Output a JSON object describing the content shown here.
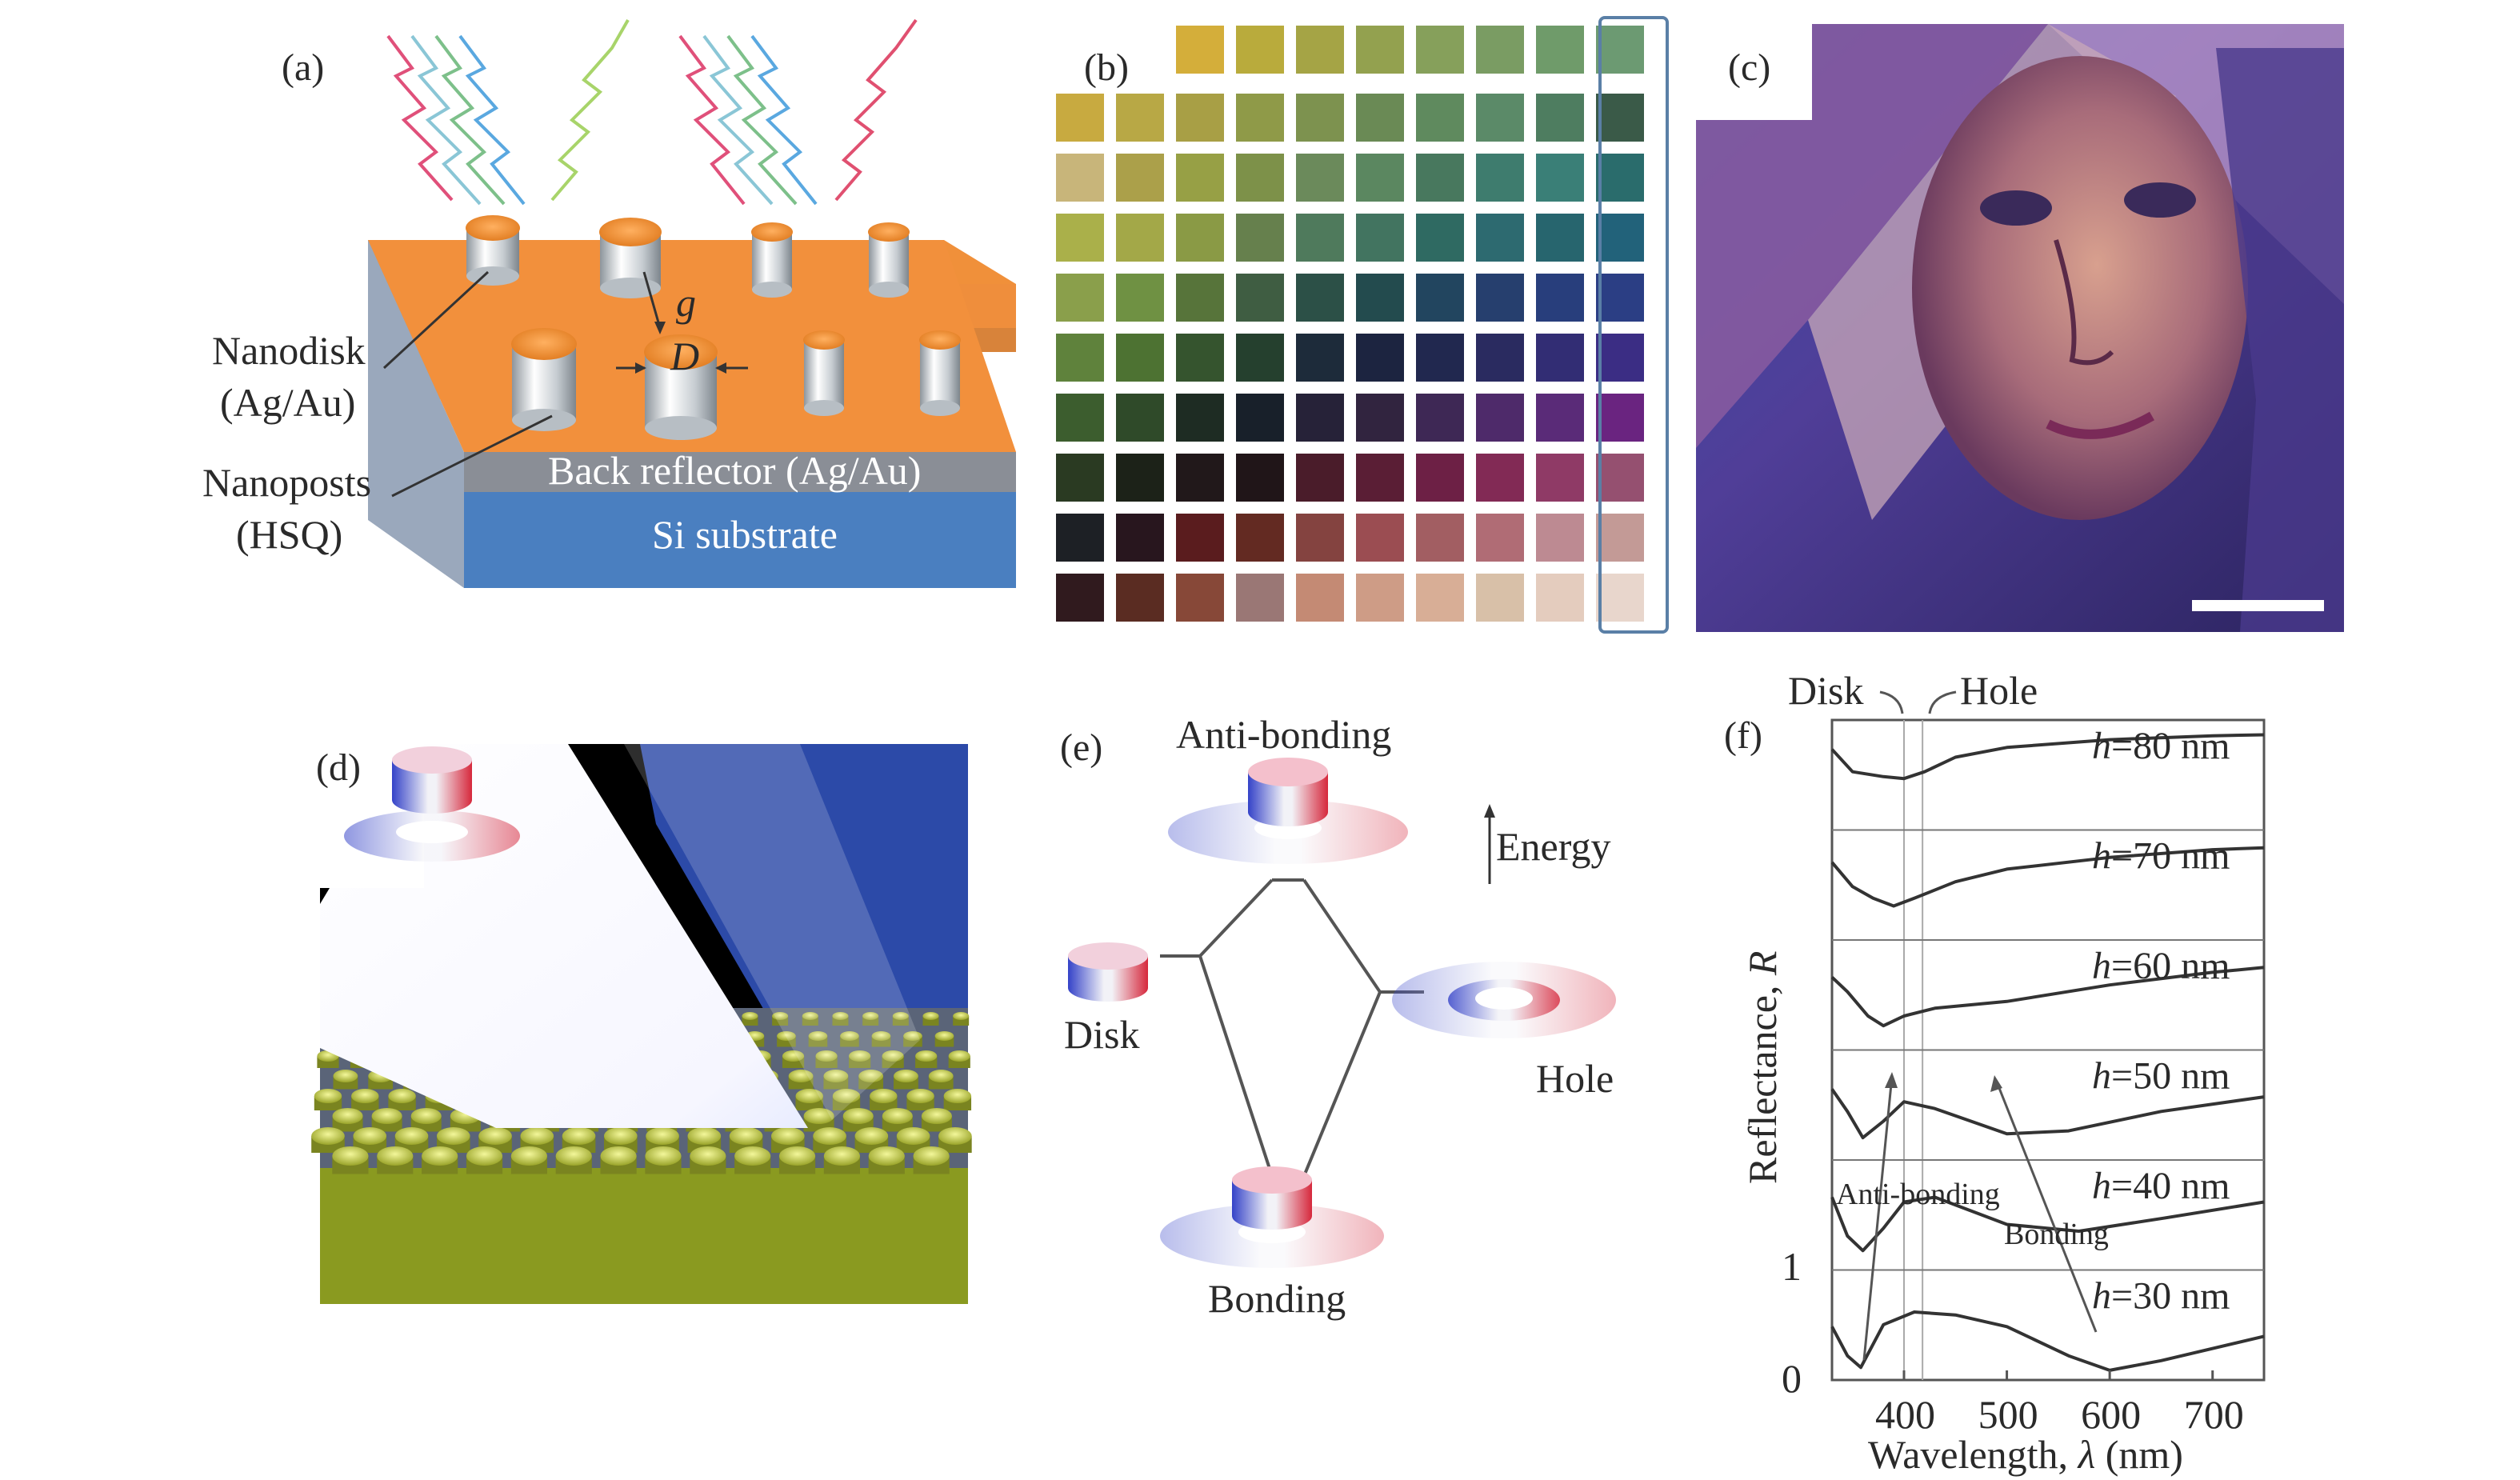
{
  "panels": {
    "a": {
      "label": "(a)",
      "nanodisk": "Nanodisk",
      "nanodisk_material": "(Ag/Au)",
      "nanoposts": "Nanoposts",
      "nanoposts_material": "(HSQ)",
      "back_reflector": "Back reflector (Ag/Au)",
      "substrate": "Si substrate",
      "gap_symbol": "g",
      "diameter_symbol": "D"
    },
    "b": {
      "label": "(b)",
      "rows": [
        [
          "",
          "",
          "#d4ae3a",
          "#b9ab3c",
          "#a5a445",
          "#93a14f",
          "#86a05b",
          "#7a9c63",
          "#6f9b6a",
          "#6c9a72"
        ],
        [
          "#c8aa40",
          "#b8a845",
          "#a89f45",
          "#8f9a48",
          "#7d924f",
          "#6a8a55",
          "#5f8a5e",
          "#5b8a68",
          "#4e7d60",
          "#3a5a48"
        ],
        [
          "#c8b57a",
          "#aba04a",
          "#97a045",
          "#7d9149",
          "#6b8a5b",
          "#5b8760",
          "#48785e",
          "#3e7c6e",
          "#3a7f77",
          "#2a6c6c"
        ],
        [
          "#aab04a",
          "#a3a848",
          "#8a9a45",
          "#66804d",
          "#4f7a5c",
          "#427460",
          "#2f6a62",
          "#2d6a70",
          "#27656e",
          "#22627a"
        ],
        [
          "#8a9f4b",
          "#6f9143",
          "#57743a",
          "#3f5d42",
          "#2c5047",
          "#234b4e",
          "#22455f",
          "#263f6e",
          "#283e7c",
          "#2b3e84"
        ],
        [
          "#5f823c",
          "#4d7232",
          "#35542e",
          "#25402e",
          "#1d2b3a",
          "#1c2440",
          "#21284f",
          "#2a2b60",
          "#322d74",
          "#3b2d84"
        ],
        [
          "#3c5d2e",
          "#2f4a29",
          "#1e2c23",
          "#18202a",
          "#262238",
          "#31243f",
          "#3e2855",
          "#4e2a6a",
          "#5a2b78",
          "#6a2480"
        ],
        [
          "#2a3a22",
          "#1c2218",
          "#21181a",
          "#201518",
          "#4a1c2a",
          "#5a1e35",
          "#6d2045",
          "#822a55",
          "#8f3a66",
          "#955070"
        ],
        [
          "#1d2025",
          "#28161e",
          "#5a1c1e",
          "#632a22",
          "#844340",
          "#9b4d52",
          "#a25e62",
          "#b06c75",
          "#bd8a92",
          "#c39a96"
        ],
        [
          "#301a1e",
          "#5a2c22",
          "#874838",
          "#9a7775",
          "#c48a74",
          "#ce9c86",
          "#d8ae96",
          "#d8c0a8",
          "#e4ccbe",
          "#e8d6cc"
        ]
      ]
    },
    "c": {
      "label": "(c)",
      "image_description": "portrait photograph rendered in structural colors with scale bar"
    },
    "d": {
      "label": "(d)"
    },
    "e": {
      "label": "(e)",
      "anti_bonding": "Anti-bonding",
      "bonding": "Bonding",
      "disk": "Disk",
      "hole": "Hole",
      "energy": "Energy"
    },
    "f": {
      "label": "(f)",
      "disk_label": "Disk",
      "hole_label": "Hole",
      "anti_bonding_label": "Anti-bonding",
      "bonding_label": "Bonding",
      "ylabel_text": "Reflectance, ",
      "ylabel_symbol": "R",
      "xlabel_text": "Wavelength, ",
      "xlabel_symbol": "λ",
      "xlabel_unit": " (nm)",
      "y_tick_0": "0",
      "y_tick_1": "1",
      "h_symbol": "h",
      "x_ticks": [
        "400",
        "500",
        "600",
        "700"
      ]
    }
  },
  "chart_data": {
    "type": "line",
    "xlabel": "Wavelength, λ (nm)",
    "ylabel": "Reflectance, R",
    "xlim": [
      330,
      750
    ],
    "ylim_per_panel": [
      0,
      1
    ],
    "markers": {
      "Disk": 400,
      "Hole": 418
    },
    "series": [
      {
        "name": "h=80 nm",
        "x": [
          330,
          350,
          380,
          400,
          420,
          450,
          500,
          600,
          700,
          750
        ],
        "y": [
          0.78,
          0.55,
          0.5,
          0.48,
          0.55,
          0.7,
          0.8,
          0.88,
          0.92,
          0.93
        ]
      },
      {
        "name": "h=70 nm",
        "x": [
          330,
          350,
          370,
          390,
          410,
          450,
          500,
          600,
          700,
          750
        ],
        "y": [
          0.75,
          0.5,
          0.38,
          0.3,
          0.38,
          0.55,
          0.68,
          0.8,
          0.88,
          0.9
        ]
      },
      {
        "name": "h=60 nm",
        "x": [
          330,
          345,
          365,
          380,
          400,
          430,
          500,
          600,
          700,
          750
        ],
        "y": [
          0.7,
          0.55,
          0.3,
          0.2,
          0.3,
          0.38,
          0.45,
          0.62,
          0.75,
          0.8
        ]
      },
      {
        "name": "h=50 nm",
        "x": [
          330,
          345,
          360,
          380,
          400,
          430,
          500,
          560,
          650,
          750
        ],
        "y": [
          0.68,
          0.45,
          0.18,
          0.35,
          0.55,
          0.48,
          0.22,
          0.25,
          0.45,
          0.6
        ]
      },
      {
        "name": "h=40 nm",
        "x": [
          330,
          345,
          360,
          380,
          400,
          430,
          500,
          570,
          650,
          750
        ],
        "y": [
          0.7,
          0.3,
          0.15,
          0.38,
          0.65,
          0.7,
          0.42,
          0.35,
          0.48,
          0.65
        ]
      },
      {
        "name": "h=30 nm",
        "x": [
          330,
          345,
          358,
          380,
          410,
          450,
          500,
          560,
          600,
          650,
          750
        ],
        "y": [
          0.5,
          0.2,
          0.08,
          0.52,
          0.65,
          0.62,
          0.5,
          0.2,
          0.05,
          0.15,
          0.4
        ]
      }
    ]
  }
}
